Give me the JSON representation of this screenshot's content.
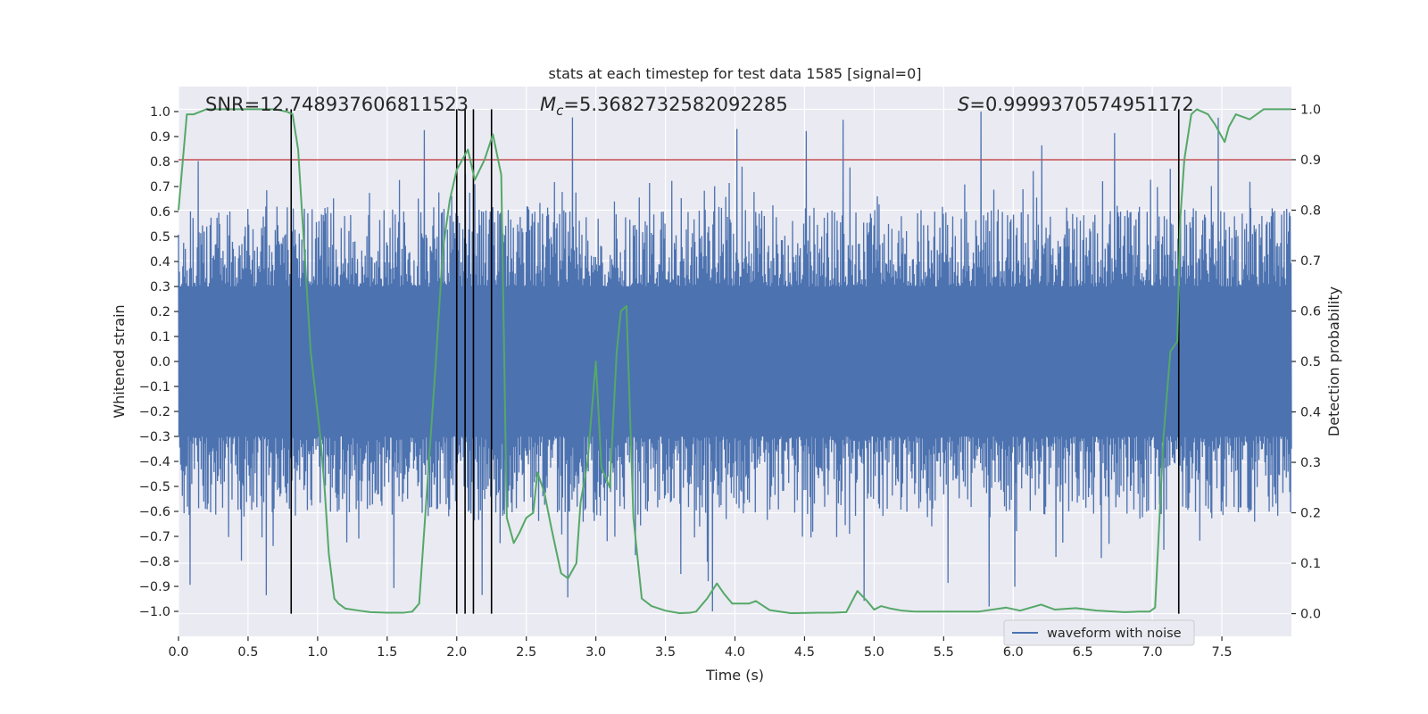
{
  "chart_data": {
    "type": "line",
    "title": "stats at each timestep for test data 1585 [signal=0]",
    "xlabel": "Time (s)",
    "ylabel": "Whitened strain",
    "y2label": "Detection probability",
    "xlim": [
      0,
      8
    ],
    "ylim": [
      -1.1,
      1.1
    ],
    "y2lim": [
      -0.045,
      1.045
    ],
    "x_ticks": [
      0.0,
      0.5,
      1.0,
      1.5,
      2.0,
      2.5,
      3.0,
      3.5,
      4.0,
      4.5,
      5.0,
      5.5,
      6.0,
      6.5,
      7.0,
      7.5
    ],
    "x_tick_labels": [
      "0.0",
      "0.5",
      "1.0",
      "1.5",
      "2.0",
      "2.5",
      "3.0",
      "3.5",
      "4.0",
      "4.5",
      "5.0",
      "5.5",
      "6.0",
      "6.5",
      "7.0",
      "7.5"
    ],
    "y_ticks": [
      -1.0,
      -0.9,
      -0.8,
      -0.7,
      -0.6,
      -0.5,
      -0.4,
      -0.3,
      -0.2,
      -0.1,
      0.0,
      0.1,
      0.2,
      0.3,
      0.4,
      0.5,
      0.6,
      0.7,
      0.8,
      0.9,
      1.0
    ],
    "y_tick_labels": [
      "−1.0",
      "−0.9",
      "−0.8",
      "−0.7",
      "−0.6",
      "−0.5",
      "−0.4",
      "−0.3",
      "−0.2",
      "−0.1",
      "0.0",
      "0.1",
      "0.2",
      "0.3",
      "0.4",
      "0.5",
      "0.6",
      "0.7",
      "0.8",
      "0.9",
      "1.0"
    ],
    "y2_ticks": [
      0.0,
      0.1,
      0.2,
      0.3,
      0.4,
      0.5,
      0.6,
      0.7,
      0.8,
      0.9,
      1.0
    ],
    "y2_tick_labels": [
      "0.0",
      "0.1",
      "0.2",
      "0.3",
      "0.4",
      "0.5",
      "0.6",
      "0.7",
      "0.8",
      "0.9",
      "1.0"
    ],
    "threshold": {
      "value": 0.9,
      "axis": "right",
      "color": "#c44e52"
    },
    "stats": {
      "snr_label": "SNR=12.748937606811523",
      "mc_symbol": "M",
      "mc_subscript": "c",
      "mc_value": "=5.3682732582092285",
      "s_symbol": "S",
      "s_value": "=0.9999370574951172"
    },
    "event_times": [
      0.81,
      2.0,
      2.06,
      2.12,
      2.25,
      7.19
    ],
    "series": [
      {
        "name": "waveform with noise",
        "axis": "left",
        "color": "#4c72b0",
        "style": "dense noise (amplitude envelope approx ±0.35 to ±0.6, peaks to ±1.0)",
        "typical_amplitude": 0.55,
        "peak_amplitude": 1.0
      },
      {
        "name": "detection probability",
        "axis": "right",
        "color": "#55a868",
        "x": [
          0.0,
          0.06,
          0.11,
          0.2,
          0.5,
          0.7,
          0.78,
          0.82,
          0.86,
          0.95,
          1.02,
          1.05,
          1.08,
          1.12,
          1.15,
          1.2,
          1.3,
          1.38,
          1.5,
          1.62,
          1.68,
          1.73,
          1.79,
          1.85,
          1.9,
          1.95,
          2.0,
          2.04,
          2.08,
          2.13,
          2.2,
          2.26,
          2.32,
          2.36,
          2.41,
          2.45,
          2.5,
          2.55,
          2.58,
          2.63,
          2.68,
          2.75,
          2.8,
          2.86,
          2.89,
          2.94,
          3.0,
          3.04,
          3.1,
          3.15,
          3.18,
          3.22,
          3.27,
          3.33,
          3.4,
          3.5,
          3.6,
          3.68,
          3.72,
          3.8,
          3.87,
          3.92,
          3.98,
          4.05,
          4.1,
          4.15,
          4.25,
          4.4,
          4.6,
          4.7,
          4.8,
          4.88,
          4.95,
          5.0,
          5.05,
          5.12,
          5.2,
          5.3,
          5.5,
          5.75,
          5.95,
          6.05,
          6.2,
          6.3,
          6.45,
          6.6,
          6.8,
          6.9,
          6.98,
          7.02,
          7.08,
          7.13,
          7.18,
          7.2,
          7.23,
          7.28,
          7.32,
          7.4,
          7.45,
          7.52,
          7.55,
          7.6,
          7.7,
          7.8,
          8.0
        ],
        "values": [
          0.8,
          0.99,
          0.99,
          1.0,
          1.0,
          1.0,
          0.995,
          0.99,
          0.92,
          0.52,
          0.35,
          0.25,
          0.12,
          0.03,
          0.02,
          0.01,
          0.006,
          0.003,
          0.002,
          0.002,
          0.004,
          0.02,
          0.26,
          0.5,
          0.72,
          0.82,
          0.88,
          0.9,
          0.92,
          0.86,
          0.9,
          0.95,
          0.87,
          0.19,
          0.14,
          0.16,
          0.19,
          0.2,
          0.28,
          0.24,
          0.17,
          0.08,
          0.07,
          0.1,
          0.22,
          0.3,
          0.5,
          0.29,
          0.25,
          0.52,
          0.6,
          0.61,
          0.19,
          0.03,
          0.015,
          0.006,
          0.001,
          0.002,
          0.004,
          0.03,
          0.06,
          0.04,
          0.02,
          0.02,
          0.02,
          0.025,
          0.007,
          0.001,
          0.002,
          0.002,
          0.003,
          0.045,
          0.025,
          0.008,
          0.015,
          0.01,
          0.006,
          0.004,
          0.004,
          0.004,
          0.012,
          0.006,
          0.018,
          0.008,
          0.011,
          0.006,
          0.003,
          0.004,
          0.004,
          0.012,
          0.35,
          0.52,
          0.54,
          0.78,
          0.9,
          0.99,
          1.0,
          0.99,
          0.97,
          0.935,
          0.965,
          0.99,
          0.98,
          1.0,
          1.0
        ]
      }
    ],
    "legend": {
      "entries": [
        "waveform with noise"
      ],
      "position": "lower-right"
    }
  }
}
